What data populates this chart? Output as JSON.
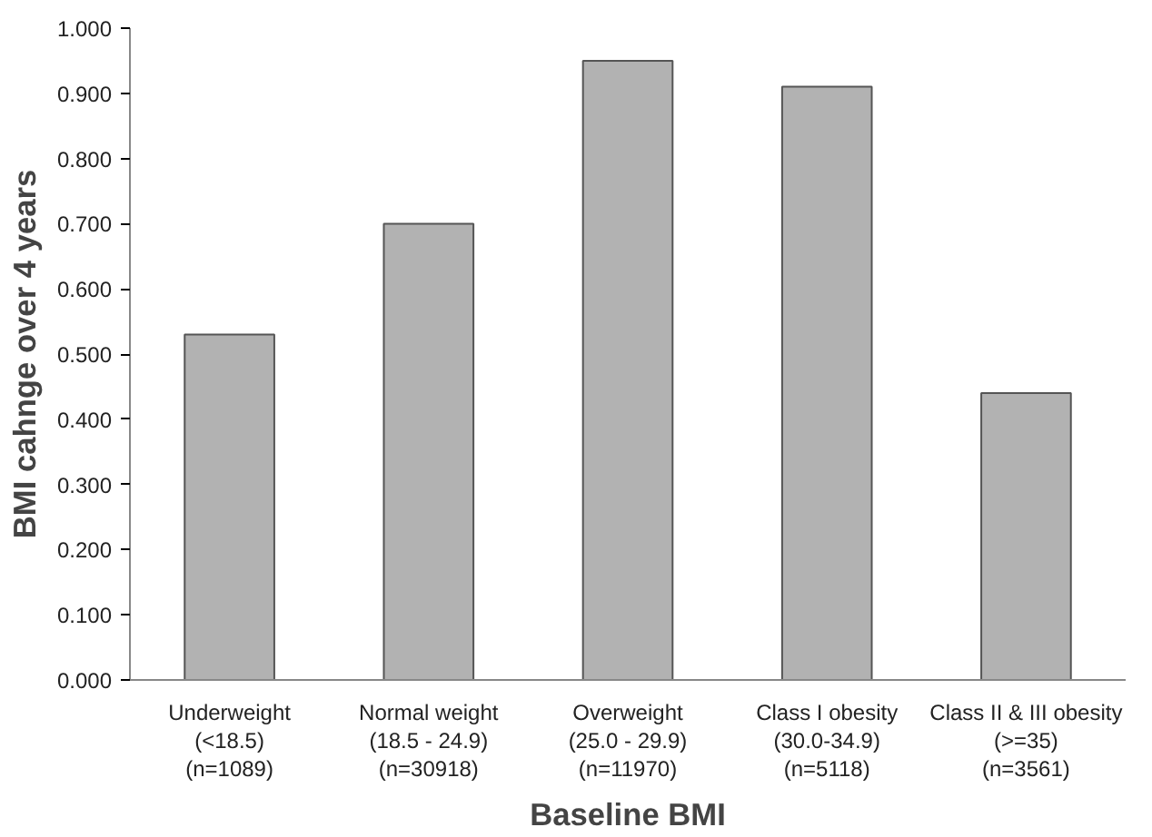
{
  "chart_data": {
    "type": "bar",
    "xlabel": "Baseline BMI",
    "ylabel": "BMI cahnge over 4 years",
    "categories": [
      "Underweight\n(<18.5)\n(n=1089)",
      "Normal weight\n(18.5 - 24.9)\n(n=30918)",
      "Overweight\n(25.0 - 29.9)\n(n=11970)",
      "Class I obesity\n(30.0-34.9)\n(n=5118)",
      "Class II & III obesity\n(>=35)\n(n=3561)"
    ],
    "values": [
      0.53,
      0.7,
      0.95,
      0.91,
      0.44
    ],
    "color": "#b2b2b2",
    "ylim": [
      0,
      1
    ],
    "yticks": [
      {
        "value": 0,
        "label": "0.000"
      },
      {
        "value": 0.1,
        "label": "0.100"
      },
      {
        "value": 0.2,
        "label": "0.200"
      },
      {
        "value": 0.3,
        "label": "0.300"
      },
      {
        "value": 0.4,
        "label": "0.400"
      },
      {
        "value": 0.5,
        "label": "0.500"
      },
      {
        "value": 0.6,
        "label": "0.600"
      },
      {
        "value": 0.7,
        "label": "0.700"
      },
      {
        "value": 0.8,
        "label": "0.800"
      },
      {
        "value": 0.9,
        "label": "0.900"
      },
      {
        "value": 1.0,
        "label": "1.000"
      }
    ],
    "grid": false
  }
}
